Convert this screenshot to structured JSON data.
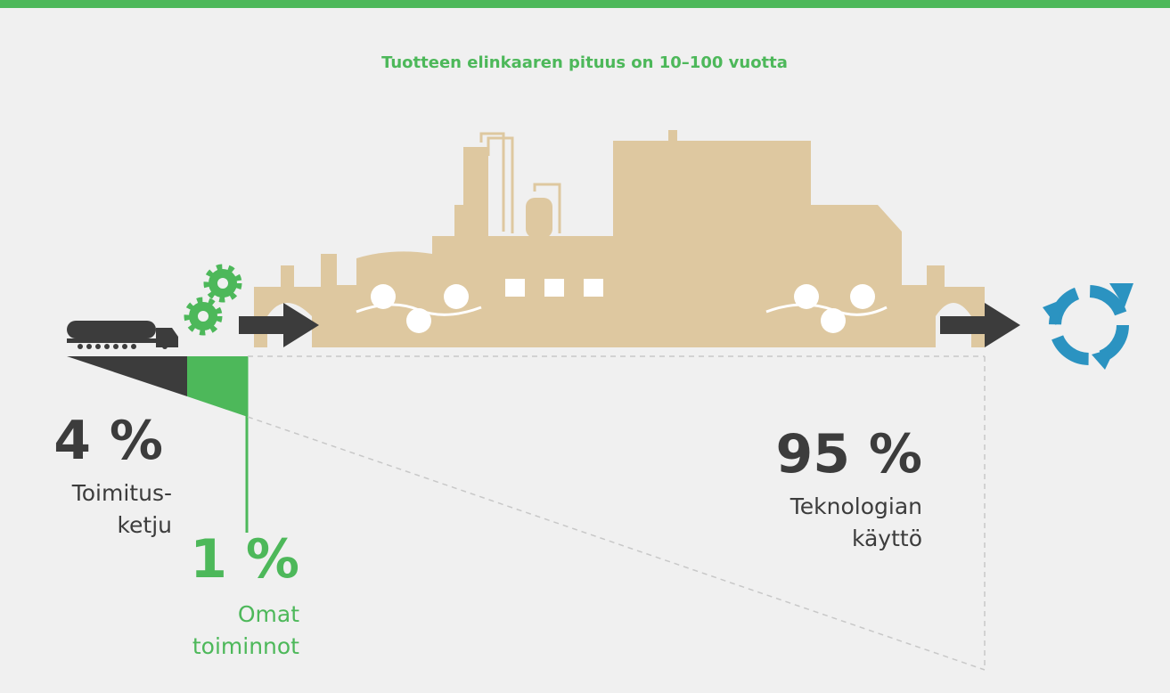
{
  "title": "Tuotteen elinkaaren pituus on 10–100 vuotta",
  "segments": [
    {
      "value": "4 %",
      "label": [
        "Toimitus-",
        "ketju"
      ]
    },
    {
      "value": "1 %",
      "label": [
        "Omat",
        "toiminnot"
      ]
    },
    {
      "value": "95 %",
      "label": [
        "Teknologian",
        "käyttö"
      ]
    }
  ]
}
